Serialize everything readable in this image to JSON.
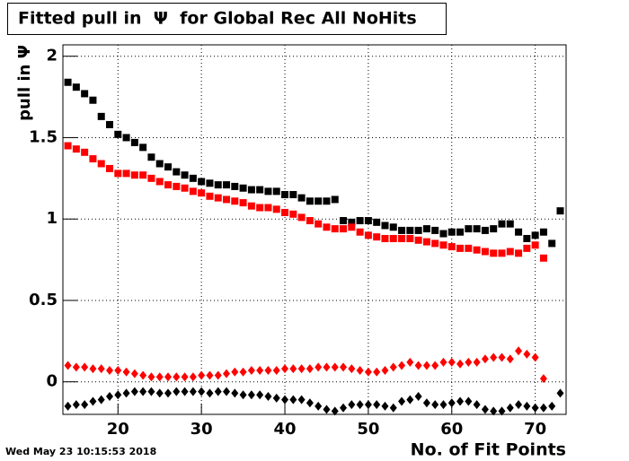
{
  "chart_data": {
    "type": "scatter",
    "title": "Fitted pull in  Ψ  for Global Rec All NoHits",
    "y_label": "pull in Ψ",
    "x_label": "No. of Fit Points",
    "timestamp": "Wed May 23 10:15:53 2018",
    "xlim": [
      13.4,
      73.7
    ],
    "ylim": [
      -0.2,
      2.07
    ],
    "xticks": [
      20,
      30,
      40,
      50,
      60,
      70
    ],
    "yticks": [
      0,
      0.5,
      1,
      1.5,
      2
    ],
    "grid": true,
    "x": [
      14,
      15,
      16,
      17,
      18,
      19,
      20,
      21,
      22,
      23,
      24,
      25,
      26,
      27,
      28,
      29,
      30,
      31,
      32,
      33,
      34,
      35,
      36,
      37,
      38,
      39,
      40,
      41,
      42,
      43,
      44,
      45,
      46,
      47,
      48,
      49,
      50,
      51,
      52,
      53,
      54,
      55,
      56,
      57,
      58,
      59,
      60,
      61,
      62,
      63,
      64,
      65,
      66,
      67,
      68,
      69,
      70,
      71,
      72,
      73
    ],
    "series": [
      {
        "color": "#000000",
        "marker": "square",
        "values": [
          1.84,
          1.81,
          1.77,
          1.73,
          1.63,
          1.58,
          1.52,
          1.5,
          1.47,
          1.44,
          1.38,
          1.34,
          1.32,
          1.29,
          1.27,
          1.25,
          1.23,
          1.22,
          1.21,
          1.21,
          1.2,
          1.19,
          1.18,
          1.18,
          1.17,
          1.17,
          1.15,
          1.15,
          1.13,
          1.11,
          1.11,
          1.11,
          1.12,
          0.99,
          0.98,
          0.99,
          0.99,
          0.98,
          0.96,
          0.95,
          0.93,
          0.93,
          0.93,
          0.94,
          0.93,
          0.91,
          0.92,
          0.92,
          0.94,
          0.94,
          0.93,
          0.94,
          0.97,
          0.97,
          0.92,
          0.88,
          0.9,
          0.92,
          0.85,
          1.05
        ]
      },
      {
        "color": "#ff0000",
        "marker": "square",
        "values": [
          1.45,
          1.43,
          1.41,
          1.37,
          1.34,
          1.31,
          1.28,
          1.28,
          1.27,
          1.27,
          1.25,
          1.23,
          1.21,
          1.2,
          1.19,
          1.17,
          1.16,
          1.14,
          1.13,
          1.12,
          1.11,
          1.1,
          1.08,
          1.07,
          1.07,
          1.06,
          1.04,
          1.03,
          1.01,
          0.99,
          0.97,
          0.95,
          0.94,
          0.94,
          0.95,
          0.92,
          0.9,
          0.89,
          0.88,
          0.88,
          0.88,
          0.88,
          0.87,
          0.86,
          0.85,
          0.84,
          0.83,
          0.82,
          0.82,
          0.81,
          0.8,
          0.79,
          0.79,
          0.8,
          0.79,
          0.82,
          0.84,
          0.76,
          null,
          null
        ]
      },
      {
        "color": "#ff0000",
        "marker": "diamond",
        "values": [
          0.1,
          0.09,
          0.09,
          0.08,
          0.08,
          0.07,
          0.07,
          0.06,
          0.05,
          0.04,
          0.03,
          0.03,
          0.03,
          0.03,
          0.03,
          0.03,
          0.04,
          0.04,
          0.04,
          0.05,
          0.06,
          0.06,
          0.07,
          0.07,
          0.07,
          0.07,
          0.08,
          0.08,
          0.08,
          0.08,
          0.09,
          0.09,
          0.09,
          0.09,
          0.08,
          0.07,
          0.06,
          0.06,
          0.07,
          0.09,
          0.1,
          0.12,
          0.1,
          0.1,
          0.1,
          0.12,
          0.12,
          0.11,
          0.12,
          0.12,
          0.14,
          0.15,
          0.15,
          0.14,
          0.19,
          0.17,
          0.15,
          0.02,
          null,
          null
        ]
      },
      {
        "color": "#000000",
        "marker": "diamond",
        "values": [
          -0.15,
          -0.14,
          -0.14,
          -0.12,
          -0.11,
          -0.09,
          -0.08,
          -0.07,
          -0.06,
          -0.06,
          -0.06,
          -0.07,
          -0.07,
          -0.06,
          -0.06,
          -0.06,
          -0.06,
          -0.07,
          -0.06,
          -0.06,
          -0.07,
          -0.08,
          -0.08,
          -0.08,
          -0.09,
          -0.1,
          -0.11,
          -0.11,
          -0.11,
          -0.13,
          -0.15,
          -0.17,
          -0.18,
          -0.16,
          -0.14,
          -0.14,
          -0.14,
          -0.14,
          -0.15,
          -0.16,
          -0.12,
          -0.11,
          -0.09,
          -0.13,
          -0.14,
          -0.14,
          -0.13,
          -0.12,
          -0.12,
          -0.14,
          -0.17,
          -0.18,
          -0.18,
          -0.16,
          -0.14,
          -0.15,
          -0.16,
          -0.16,
          -0.15,
          -0.07
        ]
      }
    ]
  }
}
